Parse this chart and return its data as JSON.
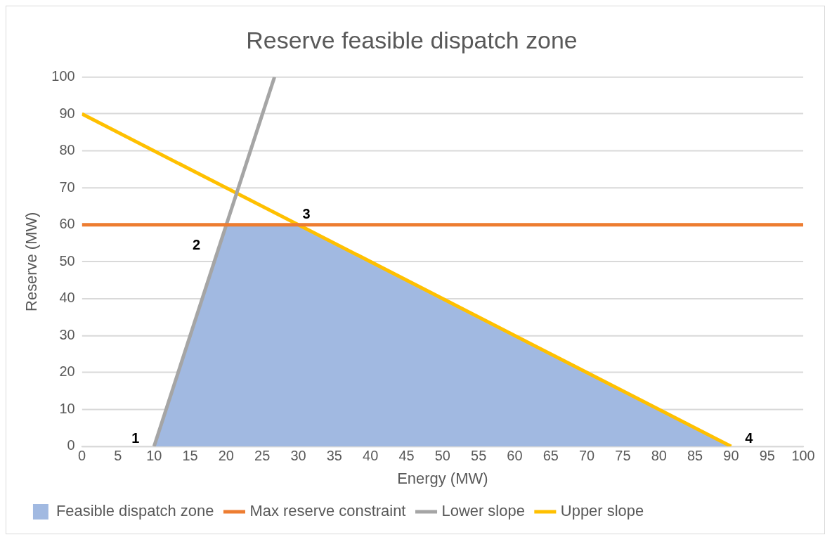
{
  "chart_data": {
    "type": "line",
    "title": "Reserve feasible dispatch zone",
    "xlabel": "Energy (MW)",
    "ylabel": "Reserve (MW)",
    "xlim": [
      0,
      100
    ],
    "xticks": [
      0,
      5,
      10,
      15,
      20,
      25,
      30,
      35,
      40,
      45,
      50,
      55,
      60,
      65,
      70,
      75,
      80,
      85,
      90,
      95,
      100
    ],
    "ylim": [
      0,
      100
    ],
    "yticks": [
      0,
      10,
      20,
      30,
      40,
      50,
      60,
      70,
      80,
      90,
      100
    ],
    "grid": "y",
    "legend": "bottom",
    "marker": "none",
    "series": [
      {
        "name": "Feasible dispatch zone",
        "type": "area",
        "color": "#a1b9e1",
        "x": [
          10,
          20,
          30,
          90
        ],
        "values": [
          0,
          60,
          60,
          0
        ]
      },
      {
        "name": "Max reserve constraint",
        "type": "line",
        "color": "#ed7d31",
        "x": [
          0,
          100
        ],
        "values": [
          60,
          60
        ]
      },
      {
        "name": "Lower slope",
        "type": "line",
        "color": "#a5a5a5",
        "x": [
          10,
          26.7
        ],
        "values": [
          0,
          100
        ]
      },
      {
        "name": "Upper slope",
        "type": "line",
        "color": "#ffc000",
        "x": [
          0,
          90
        ],
        "values": [
          90,
          0
        ]
      }
    ],
    "annotations": [
      {
        "text": "1",
        "x": 10,
        "y": 0
      },
      {
        "text": "2",
        "x": 20,
        "y": 60
      },
      {
        "text": "3",
        "x": 30,
        "y": 60
      },
      {
        "text": "4",
        "x": 90,
        "y": 0
      }
    ]
  }
}
